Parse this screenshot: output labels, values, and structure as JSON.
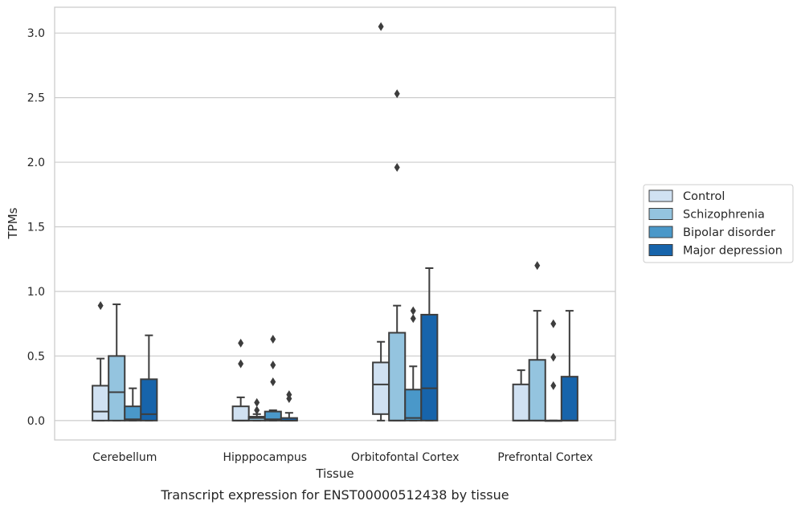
{
  "caption": "Transcript expression for ENST00000512438 by tissue",
  "chart_data": {
    "type": "boxplot",
    "title": "",
    "xlabel": "Tissue",
    "ylabel": "TPMs",
    "ylim": [
      -0.15,
      3.2
    ],
    "yticks": [
      0.0,
      0.5,
      1.0,
      1.5,
      2.0,
      2.5,
      3.0
    ],
    "ytick_labels": [
      "0.0",
      "0.5",
      "1.0",
      "1.5",
      "2.0",
      "2.5",
      "3.0"
    ],
    "grid": "horizontal",
    "legend_position": "right",
    "categories": [
      "Cerebellum",
      "Hipppocampus",
      "Orbitofontal Cortex",
      "Prefrontal Cortex"
    ],
    "series": [
      {
        "name": "Control",
        "color": "#d0e1f2",
        "boxes": [
          {
            "whislo": 0.0,
            "q1": 0.0,
            "med": 0.07,
            "q3": 0.27,
            "whishi": 0.48,
            "fliers": [
              0.89
            ]
          },
          {
            "whislo": 0.0,
            "q1": 0.0,
            "med": 0.0,
            "q3": 0.11,
            "whishi": 0.18,
            "fliers": [
              0.44,
              0.6
            ]
          },
          {
            "whislo": 0.0,
            "q1": 0.05,
            "med": 0.28,
            "q3": 0.45,
            "whishi": 0.61,
            "fliers": [
              3.05
            ]
          },
          {
            "whislo": 0.0,
            "q1": 0.0,
            "med": 0.0,
            "q3": 0.28,
            "whishi": 0.39,
            "fliers": []
          }
        ]
      },
      {
        "name": "Schizophrenia",
        "color": "#94c4df",
        "boxes": [
          {
            "whislo": 0.0,
            "q1": 0.0,
            "med": 0.22,
            "q3": 0.5,
            "whishi": 0.9,
            "fliers": []
          },
          {
            "whislo": 0.0,
            "q1": 0.0,
            "med": 0.02,
            "q3": 0.03,
            "whishi": 0.05,
            "fliers": [
              0.08,
              0.14
            ]
          },
          {
            "whislo": 0.0,
            "q1": 0.0,
            "med": 0.0,
            "q3": 0.68,
            "whishi": 0.89,
            "fliers": [
              1.96,
              2.53
            ]
          },
          {
            "whislo": 0.0,
            "q1": 0.0,
            "med": 0.0,
            "q3": 0.47,
            "whishi": 0.85,
            "fliers": [
              1.2
            ]
          }
        ]
      },
      {
        "name": "Bipolar disorder",
        "color": "#4a98c9",
        "boxes": [
          {
            "whislo": 0.0,
            "q1": 0.0,
            "med": 0.01,
            "q3": 0.11,
            "whishi": 0.25,
            "fliers": []
          },
          {
            "whislo": 0.0,
            "q1": 0.0,
            "med": 0.01,
            "q3": 0.07,
            "whishi": 0.08,
            "fliers": [
              0.3,
              0.43,
              0.63
            ]
          },
          {
            "whislo": 0.0,
            "q1": 0.0,
            "med": 0.02,
            "q3": 0.24,
            "whishi": 0.42,
            "fliers": [
              0.79,
              0.85
            ]
          },
          {
            "whislo": 0.0,
            "q1": 0.0,
            "med": 0.0,
            "q3": 0.0,
            "whishi": 0.0,
            "fliers": [
              0.27,
              0.49,
              0.75
            ]
          }
        ]
      },
      {
        "name": "Major depression",
        "color": "#1764ab",
        "boxes": [
          {
            "whislo": 0.0,
            "q1": 0.0,
            "med": 0.05,
            "q3": 0.32,
            "whishi": 0.66,
            "fliers": []
          },
          {
            "whislo": 0.0,
            "q1": 0.0,
            "med": 0.0,
            "q3": 0.02,
            "whishi": 0.06,
            "fliers": [
              0.17,
              0.2
            ]
          },
          {
            "whislo": 0.0,
            "q1": 0.0,
            "med": 0.25,
            "q3": 0.82,
            "whishi": 1.18,
            "fliers": []
          },
          {
            "whislo": 0.0,
            "q1": 0.0,
            "med": 0.0,
            "q3": 0.34,
            "whishi": 0.85,
            "fliers": []
          }
        ]
      }
    ]
  }
}
